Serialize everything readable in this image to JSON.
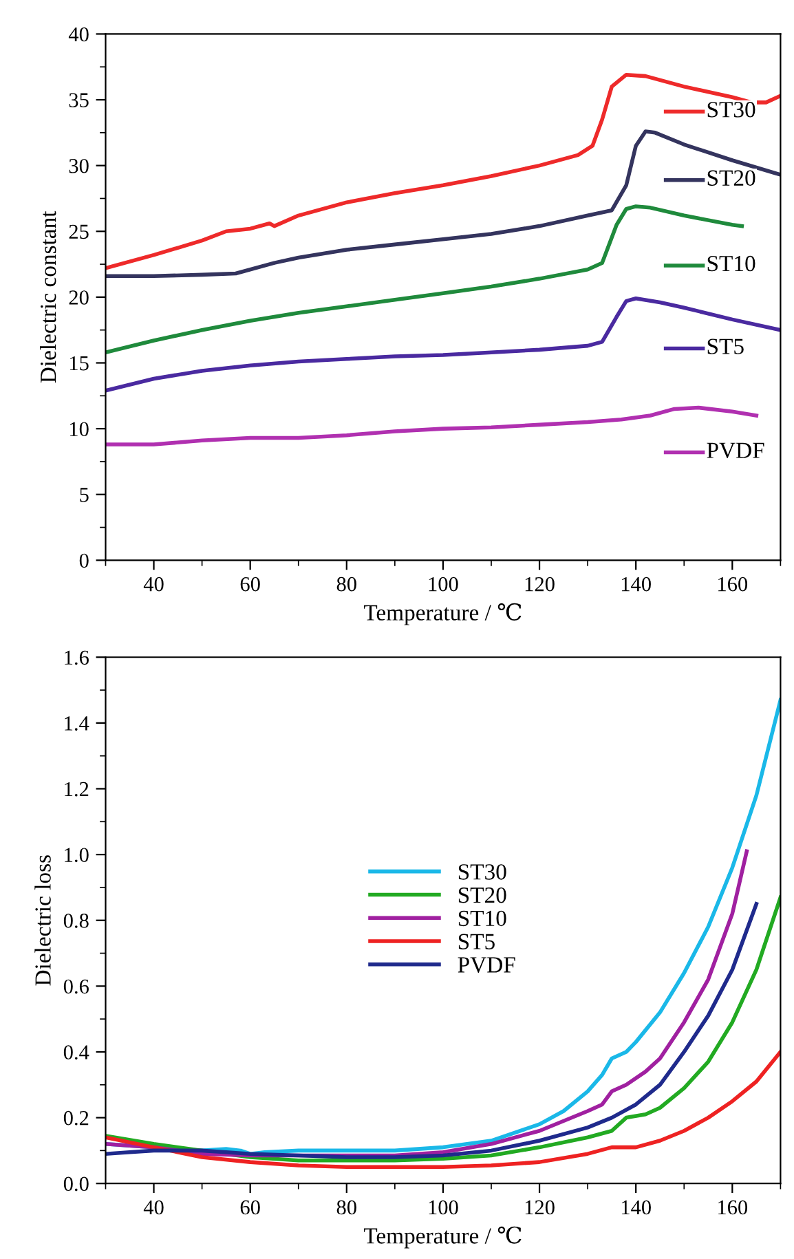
{
  "chart_data": [
    {
      "type": "line",
      "ylabel": "Dielectric constant",
      "xlabel": "Temperature / ℃",
      "xlim": [
        30,
        170
      ],
      "xticks": [
        40,
        60,
        80,
        100,
        120,
        140,
        160
      ],
      "ylim": [
        0,
        40
      ],
      "yticks": [
        0,
        5,
        10,
        15,
        20,
        25,
        30,
        35,
        40
      ],
      "grid": false,
      "legend": "right",
      "series": [
        {
          "name": "ST30",
          "color": "#ee2a2a",
          "x": [
            30,
            40,
            50,
            55,
            60,
            64,
            65,
            70,
            80,
            90,
            100,
            110,
            120,
            128,
            131,
            133,
            135,
            138,
            142,
            150,
            160,
            164,
            167,
            170
          ],
          "values": [
            22.2,
            23.2,
            24.3,
            25.0,
            25.2,
            25.6,
            25.4,
            26.2,
            27.2,
            27.9,
            28.5,
            29.2,
            30.0,
            30.8,
            31.5,
            33.5,
            36.0,
            36.9,
            36.8,
            36.0,
            35.2,
            34.8,
            34.8,
            35.3
          ]
        },
        {
          "name": "ST20",
          "color": "#34345e",
          "x": [
            30,
            40,
            50,
            57,
            65,
            70,
            80,
            90,
            100,
            110,
            120,
            130,
            135,
            138,
            140,
            142,
            144,
            150,
            160,
            170
          ],
          "values": [
            21.6,
            21.6,
            21.7,
            21.8,
            22.6,
            23.0,
            23.6,
            24.0,
            24.4,
            24.8,
            25.4,
            26.2,
            26.6,
            28.5,
            31.5,
            32.6,
            32.5,
            31.6,
            30.4,
            29.3
          ]
        },
        {
          "name": "ST10",
          "color": "#1f8a3c",
          "x": [
            30,
            40,
            50,
            60,
            70,
            80,
            90,
            100,
            110,
            120,
            130,
            133,
            136,
            138,
            140,
            143,
            150,
            160,
            162
          ],
          "values": [
            15.8,
            16.7,
            17.5,
            18.2,
            18.8,
            19.3,
            19.8,
            20.3,
            20.8,
            21.4,
            22.1,
            22.6,
            25.5,
            26.7,
            26.9,
            26.8,
            26.2,
            25.5,
            25.4
          ]
        },
        {
          "name": "ST5",
          "color": "#4a2aa0",
          "x": [
            30,
            40,
            50,
            60,
            70,
            80,
            90,
            100,
            110,
            120,
            130,
            133,
            136,
            138,
            140,
            145,
            150,
            160,
            170
          ],
          "values": [
            12.9,
            13.8,
            14.4,
            14.8,
            15.1,
            15.3,
            15.5,
            15.6,
            15.8,
            16.0,
            16.3,
            16.6,
            18.5,
            19.7,
            19.9,
            19.6,
            19.2,
            18.3,
            17.5
          ]
        },
        {
          "name": "PVDF",
          "color": "#b030b0",
          "x": [
            30,
            40,
            50,
            60,
            70,
            80,
            90,
            100,
            110,
            120,
            130,
            137,
            143,
            148,
            153,
            160,
            165
          ],
          "values": [
            8.8,
            8.8,
            9.1,
            9.3,
            9.3,
            9.5,
            9.8,
            10.0,
            10.1,
            10.3,
            10.5,
            10.7,
            11.0,
            11.5,
            11.6,
            11.3,
            11.0
          ]
        }
      ]
    },
    {
      "type": "line",
      "ylabel": "Dielectric loss",
      "xlabel": "Temperature / ℃",
      "xlim": [
        30,
        170
      ],
      "xticks": [
        40,
        60,
        80,
        100,
        120,
        140,
        160
      ],
      "ylim": [
        0,
        1.6
      ],
      "yticks": [
        {
          "value": 0,
          "label": "0.0"
        },
        0.2,
        0.4,
        0.6,
        0.8,
        {
          "value": 1,
          "label": "1.0"
        },
        1.2,
        1.4,
        1.6
      ],
      "grid": false,
      "legend": "center",
      "series": [
        {
          "name": "ST30",
          "color": "#1ab8e8",
          "x": [
            30,
            40,
            50,
            55,
            58,
            60,
            63,
            70,
            80,
            90,
            100,
            110,
            120,
            125,
            130,
            133,
            135,
            138,
            140,
            145,
            150,
            155,
            160,
            165,
            170
          ],
          "values": [
            0.12,
            0.11,
            0.1,
            0.105,
            0.1,
            0.09,
            0.095,
            0.1,
            0.1,
            0.1,
            0.11,
            0.13,
            0.18,
            0.22,
            0.28,
            0.33,
            0.38,
            0.4,
            0.43,
            0.52,
            0.64,
            0.78,
            0.96,
            1.18,
            1.47
          ]
        },
        {
          "name": "ST20",
          "color": "#22aa22",
          "x": [
            30,
            40,
            50,
            60,
            70,
            80,
            90,
            100,
            110,
            120,
            130,
            135,
            138,
            142,
            145,
            150,
            155,
            160,
            165,
            170
          ],
          "values": [
            0.145,
            0.12,
            0.1,
            0.08,
            0.07,
            0.07,
            0.07,
            0.075,
            0.085,
            0.11,
            0.14,
            0.16,
            0.2,
            0.21,
            0.23,
            0.29,
            0.37,
            0.49,
            0.65,
            0.87
          ]
        },
        {
          "name": "ST10",
          "color": "#a020a0",
          "x": [
            30,
            40,
            50,
            60,
            70,
            80,
            90,
            100,
            110,
            120,
            130,
            133,
            135,
            138,
            142,
            145,
            150,
            155,
            160,
            163
          ],
          "values": [
            0.12,
            0.11,
            0.09,
            0.085,
            0.085,
            0.085,
            0.085,
            0.095,
            0.12,
            0.16,
            0.22,
            0.24,
            0.28,
            0.3,
            0.34,
            0.38,
            0.49,
            0.62,
            0.82,
            1.01
          ]
        },
        {
          "name": "ST5",
          "color": "#ee2222",
          "x": [
            30,
            40,
            50,
            60,
            70,
            80,
            90,
            100,
            110,
            120,
            130,
            135,
            140,
            145,
            150,
            155,
            160,
            165,
            170
          ],
          "values": [
            0.14,
            0.11,
            0.08,
            0.065,
            0.055,
            0.05,
            0.05,
            0.05,
            0.055,
            0.065,
            0.09,
            0.11,
            0.11,
            0.13,
            0.16,
            0.2,
            0.25,
            0.31,
            0.4
          ]
        },
        {
          "name": "PVDF",
          "color": "#1f2a8c",
          "x": [
            30,
            35,
            40,
            50,
            55,
            60,
            70,
            80,
            90,
            100,
            110,
            120,
            130,
            135,
            140,
            145,
            150,
            155,
            160,
            165
          ],
          "values": [
            0.09,
            0.095,
            0.1,
            0.1,
            0.095,
            0.09,
            0.085,
            0.08,
            0.08,
            0.085,
            0.1,
            0.13,
            0.17,
            0.2,
            0.24,
            0.3,
            0.4,
            0.51,
            0.65,
            0.85
          ]
        }
      ]
    }
  ]
}
